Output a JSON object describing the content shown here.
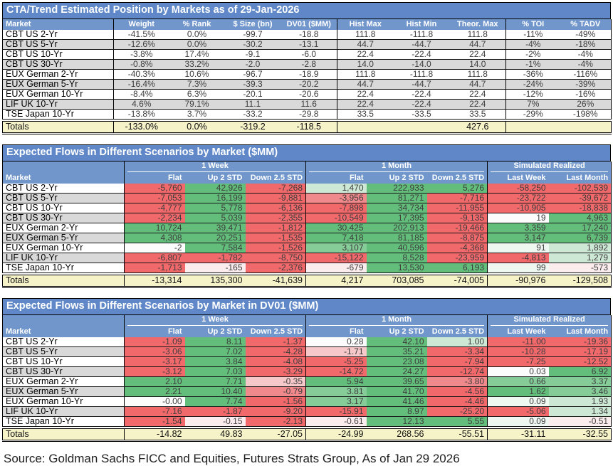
{
  "palette": {
    "G3": "#63BE7B",
    "G2": "#86CC98",
    "G1": "#CDE9D5",
    "G0": "#EFF7F1",
    "W": "#FCFCFC",
    "R0": "#FBECEE",
    "R1": "#F6C8CA",
    "R2": "#F0898C",
    "R3": "#F2696C",
    "totals_bg": "#F6F3C9",
    "stripe": "#D9D9D9",
    "title_blue": "#6088C8",
    "header_blue": "#7096CC"
  },
  "positions_table": {
    "title": "CTA/Trend Estimated Position by Markets as of 29-Jan-2026",
    "columns": [
      "Market",
      "Weight",
      "% Rank",
      "$ Size (bn)",
      "DV01 ($MM)",
      "Hist Max",
      "Hist Min",
      "Theor. Max",
      "% TOI",
      "% TADV"
    ],
    "rows": [
      [
        "CBT US 2-Yr",
        "-41.5%",
        "0.0%",
        "-99.7",
        "-18.8",
        "111.8",
        "-111.8",
        "111.8",
        "-11%",
        "-49%"
      ],
      [
        "CBT US 5-Yr",
        "-12.6%",
        "0.0%",
        "-30.2",
        "-13.1",
        "44.7",
        "-44.7",
        "44.7",
        "-4%",
        "-18%"
      ],
      [
        "CBT US 10-Yr",
        "-3.8%",
        "17.4%",
        "-9.1",
        "-6.0",
        "22.4",
        "-22.4",
        "22.4",
        "-2%",
        "-4%"
      ],
      [
        "CBT US 30-Yr",
        "-0.8%",
        "33.2%",
        "-2.0",
        "-2.8",
        "14.0",
        "-14.0",
        "14.0",
        "-1%",
        "-4%"
      ],
      [
        "EUX German 2-Yr",
        "-40.3%",
        "10.6%",
        "-96.7",
        "-18.9",
        "111.8",
        "-111.8",
        "111.8",
        "-36%",
        "-116%"
      ],
      [
        "EUX German 5-Yr",
        "-16.4%",
        "7.3%",
        "-39.3",
        "-20.2",
        "44.7",
        "-44.7",
        "44.7",
        "-24%",
        "-39%"
      ],
      [
        "EUX German 10-Yr",
        "-8.4%",
        "6.3%",
        "-20.1",
        "-20.6",
        "22.4",
        "-22.4",
        "22.4",
        "-12%",
        "-16%"
      ],
      [
        "LIF UK 10-Yr",
        "4.6%",
        "79.1%",
        "11.1",
        "11.6",
        "22.4",
        "-22.4",
        "22.4",
        "7%",
        "26%"
      ],
      [
        "TSE Japan 10-Yr",
        "-13.8%",
        "3.7%",
        "-33.2",
        "-29.8",
        "33.5",
        "-33.5",
        "33.5",
        "-29%",
        "-198%"
      ]
    ],
    "totals": [
      "Totals",
      "-133.0%",
      "0.0%",
      "-319.2",
      "-118.5",
      "",
      "",
      "427.6",
      "",
      ""
    ]
  },
  "flows_mm_table": {
    "title": "Expected Flows in Different Scenarios by Market ($MM)",
    "groups": [
      "1 Week",
      "1 Month",
      "Simulated Realized"
    ],
    "columns": [
      "Market",
      "Flat",
      "Up 2 STD",
      "Down 2.5 STD",
      "Flat",
      "Up 2 STD",
      "Down 2.5 STD",
      "Last Week",
      "Last Month"
    ],
    "rows": [
      {
        "market": "CBT US 2-Yr",
        "cells": [
          [
            "-5,760",
            "R3"
          ],
          [
            "42,926",
            "G3"
          ],
          [
            "-7,268",
            "R3"
          ],
          [
            "1,470",
            "G1"
          ],
          [
            "222,933",
            "G3"
          ],
          [
            "5,276",
            "G3"
          ],
          [
            "-58,250",
            "R3"
          ],
          [
            "-102,539",
            "R3"
          ]
        ]
      },
      {
        "market": "CBT US 5-Yr",
        "cells": [
          [
            "-7,053",
            "R3"
          ],
          [
            "16,199",
            "G3"
          ],
          [
            "-9,881",
            "R3"
          ],
          [
            "-3,956",
            "R2"
          ],
          [
            "81,271",
            "G3"
          ],
          [
            "-7,716",
            "R3"
          ],
          [
            "-23,722",
            "R3"
          ],
          [
            "-39,672",
            "R3"
          ]
        ]
      },
      {
        "market": "CBT US 10-Yr",
        "cells": [
          [
            "-4,777",
            "R3"
          ],
          [
            "5,778",
            "G3"
          ],
          [
            "-6,136",
            "R3"
          ],
          [
            "-7,898",
            "R3"
          ],
          [
            "34,734",
            "G3"
          ],
          [
            "-11,955",
            "R3"
          ],
          [
            "-10,905",
            "R3"
          ],
          [
            "-18,838",
            "R3"
          ]
        ]
      },
      {
        "market": "CBT US 30-Yr",
        "cells": [
          [
            "-2,234",
            "R3"
          ],
          [
            "5,039",
            "G3"
          ],
          [
            "-2,355",
            "R3"
          ],
          [
            "-10,549",
            "R3"
          ],
          [
            "17,395",
            "G3"
          ],
          [
            "-9,135",
            "R3"
          ],
          [
            "19",
            "W"
          ],
          [
            "4,963",
            "G3"
          ]
        ]
      },
      {
        "market": "EUX German 2-Yr",
        "cells": [
          [
            "10,724",
            "G3"
          ],
          [
            "39,471",
            "G3"
          ],
          [
            "-1,812",
            "R3"
          ],
          [
            "30,425",
            "G3"
          ],
          [
            "202,913",
            "G3"
          ],
          [
            "-19,466",
            "R3"
          ],
          [
            "3,359",
            "G3"
          ],
          [
            "17,240",
            "G3"
          ]
        ]
      },
      {
        "market": "EUX German 5-Yr",
        "cells": [
          [
            "4,308",
            "G3"
          ],
          [
            "20,251",
            "G3"
          ],
          [
            "-1,535",
            "R3"
          ],
          [
            "7,418",
            "G3"
          ],
          [
            "81,185",
            "G3"
          ],
          [
            "-8,875",
            "R3"
          ],
          [
            "3,147",
            "G3"
          ],
          [
            "6,739",
            "G3"
          ]
        ]
      },
      {
        "market": "EUX German 10-Yr",
        "cells": [
          [
            "-2",
            "W"
          ],
          [
            "7,584",
            "G3"
          ],
          [
            "-1,526",
            "R3"
          ],
          [
            "3,107",
            "G2"
          ],
          [
            "40,596",
            "G3"
          ],
          [
            "-4,368",
            "R3"
          ],
          [
            "91",
            "G0"
          ],
          [
            "1,892",
            "G1"
          ]
        ]
      },
      {
        "market": "LIF UK 10-Yr",
        "cells": [
          [
            "-6,807",
            "R3"
          ],
          [
            "-1,782",
            "R3"
          ],
          [
            "-8,750",
            "R3"
          ],
          [
            "-15,122",
            "R3"
          ],
          [
            "8,528",
            "G3"
          ],
          [
            "-23,959",
            "R3"
          ],
          [
            "-4,813",
            "R3"
          ],
          [
            "1,279",
            "G1"
          ]
        ]
      },
      {
        "market": "TSE Japan 10-Yr",
        "cells": [
          [
            "-1,713",
            "R3"
          ],
          [
            "-165",
            "R0"
          ],
          [
            "-2,376",
            "R3"
          ],
          [
            "-679",
            "R0"
          ],
          [
            "13,530",
            "G3"
          ],
          [
            "6,193",
            "G3"
          ],
          [
            "99",
            "G0"
          ],
          [
            "-573",
            "R0"
          ]
        ]
      }
    ],
    "totals": [
      "Totals",
      "-13,314",
      "135,300",
      "-41,639",
      "4,217",
      "703,085",
      "-74,005",
      "-90,976",
      "-129,508"
    ]
  },
  "flows_dv01_table": {
    "title": "Expected Flows in Different Scenarios by Market in DV01 ($MM)",
    "groups": [
      "1 Week",
      "1 Month",
      "Simulated Realized"
    ],
    "columns": [
      "Market",
      "Flat",
      "Up 2 STD",
      "Down 2.5 STD",
      "Flat",
      "Up 2 STD",
      "Down 2.5 STD",
      "Last Week",
      "Last Month"
    ],
    "rows": [
      {
        "market": "CBT US 2-Yr",
        "cells": [
          [
            "-1.09",
            "R3"
          ],
          [
            "8.11",
            "G3"
          ],
          [
            "-1.37",
            "R3"
          ],
          [
            "0.28",
            "W"
          ],
          [
            "42.10",
            "G3"
          ],
          [
            "1.00",
            "G1"
          ],
          [
            "-11.00",
            "R3"
          ],
          [
            "-19.36",
            "R3"
          ]
        ]
      },
      {
        "market": "CBT US 5-Yr",
        "cells": [
          [
            "-3.06",
            "R3"
          ],
          [
            "7.02",
            "G3"
          ],
          [
            "-4.28",
            "R3"
          ],
          [
            "-1.71",
            "R1"
          ],
          [
            "35.21",
            "G3"
          ],
          [
            "-3.34",
            "R3"
          ],
          [
            "-10.28",
            "R3"
          ],
          [
            "-17.19",
            "R3"
          ]
        ]
      },
      {
        "market": "CBT US 10-Yr",
        "cells": [
          [
            "-3.17",
            "R3"
          ],
          [
            "3.84",
            "G3"
          ],
          [
            "-4.08",
            "R3"
          ],
          [
            "-5.25",
            "R3"
          ],
          [
            "23.08",
            "G3"
          ],
          [
            "-7.94",
            "R3"
          ],
          [
            "-7.25",
            "R3"
          ],
          [
            "-12.52",
            "R3"
          ]
        ]
      },
      {
        "market": "CBT US 30-Yr",
        "cells": [
          [
            "-3.12",
            "R3"
          ],
          [
            "7.03",
            "G3"
          ],
          [
            "-3.29",
            "R3"
          ],
          [
            "-14.72",
            "R3"
          ],
          [
            "24.27",
            "G3"
          ],
          [
            "-12.74",
            "R3"
          ],
          [
            "0.03",
            "W"
          ],
          [
            "6.92",
            "G3"
          ]
        ]
      },
      {
        "market": "EUX German 2-Yr",
        "cells": [
          [
            "2.10",
            "G3"
          ],
          [
            "7.71",
            "G3"
          ],
          [
            "-0.35",
            "R1"
          ],
          [
            "5.94",
            "G3"
          ],
          [
            "39.65",
            "G3"
          ],
          [
            "-3.80",
            "R2"
          ],
          [
            "0.66",
            "G2"
          ],
          [
            "3.37",
            "G2"
          ]
        ]
      },
      {
        "market": "EUX German 5-Yr",
        "cells": [
          [
            "2.21",
            "G3"
          ],
          [
            "10.40",
            "G3"
          ],
          [
            "-0.79",
            "R2"
          ],
          [
            "3.81",
            "G2"
          ],
          [
            "41.70",
            "G3"
          ],
          [
            "-4.56",
            "R3"
          ],
          [
            "1.62",
            "G3"
          ],
          [
            "3.46",
            "G2"
          ]
        ]
      },
      {
        "market": "EUX German 10-Yr",
        "cells": [
          [
            "-0.00",
            "W"
          ],
          [
            "7.74",
            "G3"
          ],
          [
            "-1.56",
            "R3"
          ],
          [
            "3.17",
            "G2"
          ],
          [
            "41.46",
            "G3"
          ],
          [
            "-4.46",
            "R3"
          ],
          [
            "0.09",
            "G0"
          ],
          [
            "1.93",
            "G1"
          ]
        ]
      },
      {
        "market": "LIF UK 10-Yr",
        "cells": [
          [
            "-7.16",
            "R3"
          ],
          [
            "-1.87",
            "R3"
          ],
          [
            "-9.20",
            "R3"
          ],
          [
            "-15.91",
            "R3"
          ],
          [
            "8.97",
            "G3"
          ],
          [
            "-25.20",
            "R3"
          ],
          [
            "-5.06",
            "R3"
          ],
          [
            "1.34",
            "G1"
          ]
        ]
      },
      {
        "market": "TSE Japan 10-Yr",
        "cells": [
          [
            "-1.54",
            "R3"
          ],
          [
            "-0.15",
            "R0"
          ],
          [
            "-2.13",
            "R3"
          ],
          [
            "-0.61",
            "R0"
          ],
          [
            "12.13",
            "G3"
          ],
          [
            "5.55",
            "G3"
          ],
          [
            "0.09",
            "G0"
          ],
          [
            "-0.51",
            "R0"
          ]
        ]
      }
    ],
    "totals": [
      "Totals",
      "-14.82",
      "49.83",
      "-27.05",
      "-24.99",
      "268.56",
      "-55.51",
      "-31.11",
      "-32.55"
    ]
  },
  "source": "Source: Goldman Sachs FICC and Equities, Futures Strats Group, As of Jan 29 2026"
}
